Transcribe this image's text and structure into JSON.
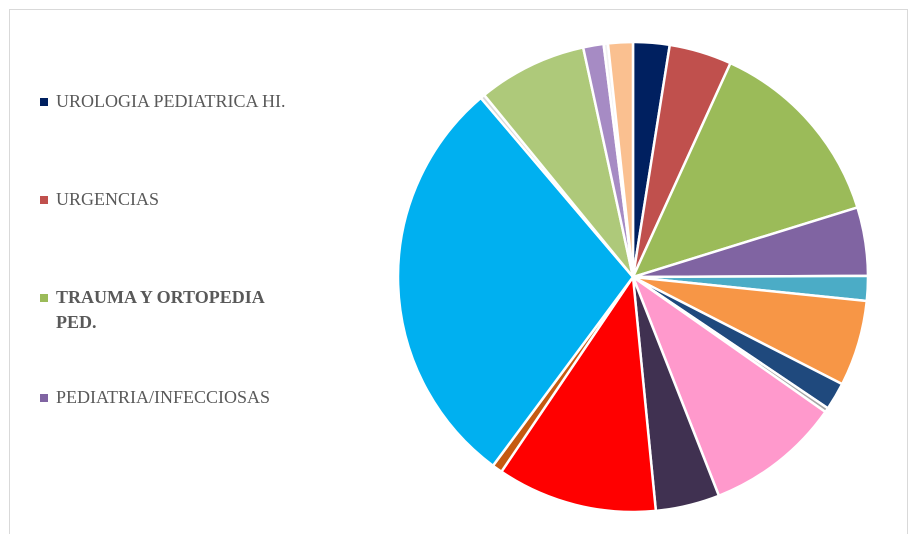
{
  "chart_data": {
    "type": "pie",
    "categories": [
      "UROLOGIA PEDIATRICA HI.",
      "URGENCIAS",
      "TRAUMA Y ORTOPEDIA PED.",
      "PEDIATRIA/INFECCIOSAS",
      null,
      null,
      null,
      null,
      null,
      null,
      null,
      null,
      null,
      null,
      null,
      null,
      null,
      null
    ],
    "values": [
      2.5,
      4.3,
      13.4,
      4.7,
      1.7,
      5.9,
      1.9,
      0.3,
      9.3,
      4.4,
      11,
      0.7,
      28.6,
      0.3,
      7.5,
      1.4,
      0.3,
      1.7
    ],
    "colors": [
      "#002060",
      "#c0504d",
      "#9bbb59",
      "#8064a2",
      "#4bacc6",
      "#f79646",
      "#1f497d",
      "#a5a5a5",
      "#ff99cc",
      "#403151",
      "#ff0000",
      "#c55a11",
      "#00b0f0",
      "#d9d9d9",
      "#aec97a",
      "#a68bc4",
      "#f2f2f2",
      "#fac090"
    ],
    "legend": "left"
  }
}
